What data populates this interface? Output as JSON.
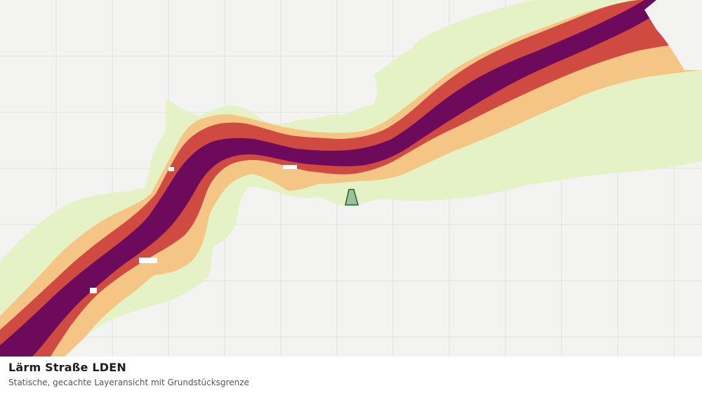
{
  "map": {
    "layer": "Lärm Straße LDEN",
    "colors": {
      "background": "#f3f4f2",
      "grid": "#dfe1de",
      "noise_low": "#e4f2c6",
      "noise_mid": "#f4c584",
      "noise_high": "#cf4a41",
      "noise_max": "#6d0a5c",
      "parcel_fill": "#8fb88f",
      "parcel_stroke": "#235f32"
    }
  },
  "caption": {
    "title": "Lärm Straße LDEN",
    "subtitle": "Statische, gecachte Layeransicht mit Grundstücksgrenze"
  }
}
